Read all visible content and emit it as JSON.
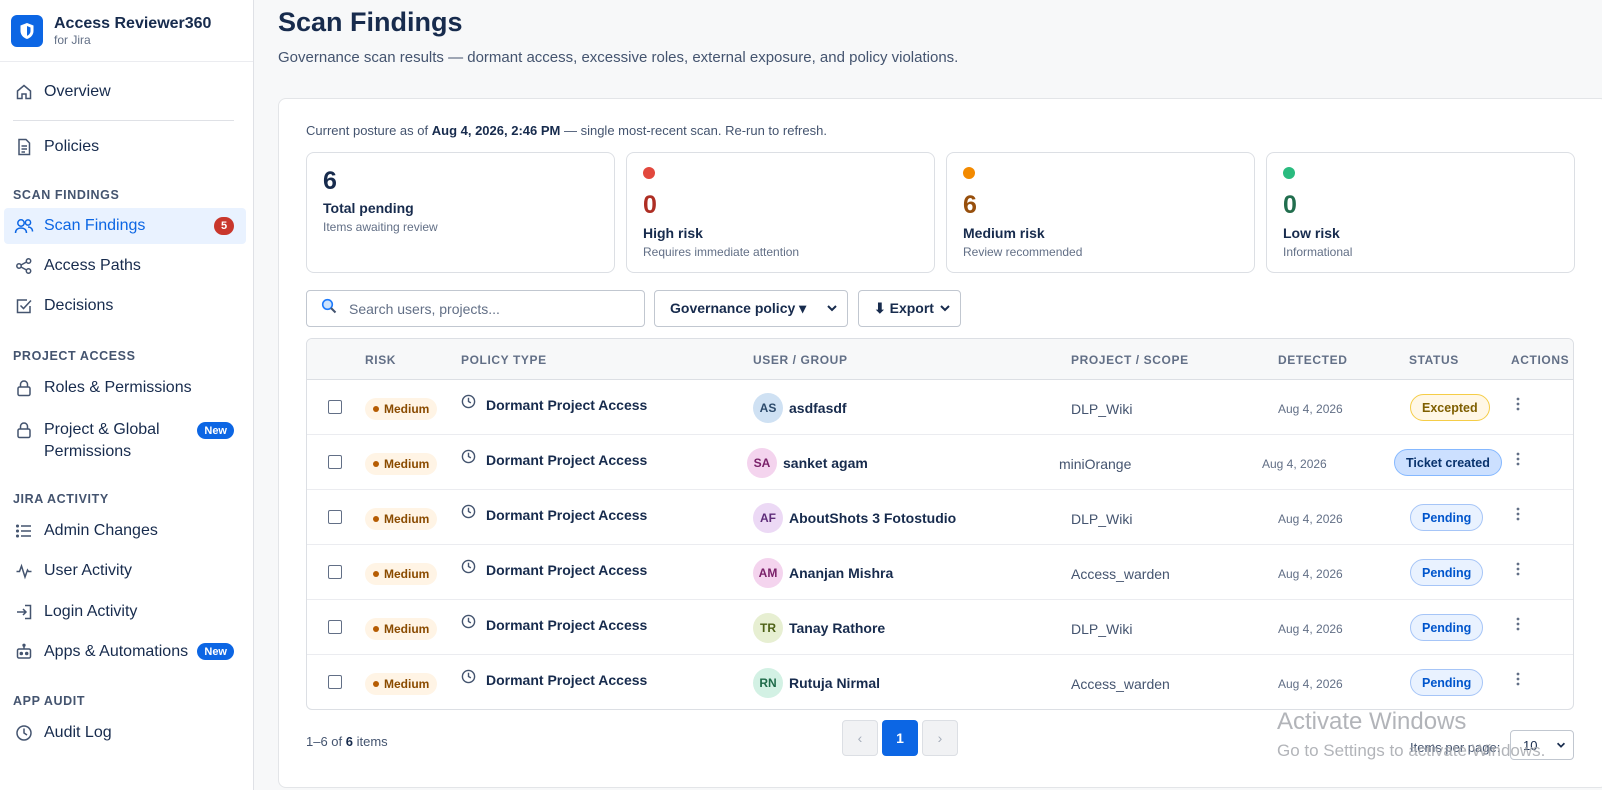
{
  "app": {
    "title": "Access Reviewer360",
    "subtitle": "for Jira"
  },
  "sidebar": {
    "top_items": [
      {
        "label": "Overview",
        "icon": "home-icon"
      },
      {
        "label": "Policies",
        "icon": "document-icon"
      }
    ],
    "sections": [
      {
        "title": "SCAN FINDINGS",
        "items": [
          {
            "label": "Scan Findings",
            "icon": "users-icon",
            "badge": "5",
            "active": true
          },
          {
            "label": "Access Paths",
            "icon": "share-icon"
          },
          {
            "label": "Decisions",
            "icon": "checkbox-icon"
          }
        ]
      },
      {
        "title": "PROJECT ACCESS",
        "items": [
          {
            "label": "Roles & Permissions",
            "icon": "lock-icon"
          },
          {
            "label": "Project & Global Permissions",
            "icon": "lock-icon",
            "badge": "New"
          }
        ]
      },
      {
        "title": "JIRA ACTIVITY",
        "items": [
          {
            "label": "Admin Changes",
            "icon": "list-icon"
          },
          {
            "label": "User Activity",
            "icon": "activity-icon"
          },
          {
            "label": "Login Activity",
            "icon": "login-icon"
          },
          {
            "label": "Apps & Automations",
            "icon": "robot-icon",
            "badge": "New"
          }
        ]
      },
      {
        "title": "APP AUDIT",
        "items": [
          {
            "label": "Audit Log",
            "icon": "clock-icon"
          }
        ]
      }
    ]
  },
  "header": {
    "title": "Scan Findings",
    "subtitle": "Governance scan results — dormant access, excessive roles, external exposure, and policy violations."
  },
  "posture": {
    "prefix": "Current posture as of ",
    "timestamp": "Aug 4, 2026, 2:46 PM",
    "suffix": " — single most-recent scan. Re-run to refresh."
  },
  "stats": [
    {
      "value": "6",
      "label": "Total pending",
      "desc": "Items awaiting review",
      "color": "#172b4d"
    },
    {
      "value": "0",
      "label": "High risk",
      "desc": "Requires immediate attention",
      "color": "#ae2e24",
      "dot": "#e2483d"
    },
    {
      "value": "6",
      "label": "Medium risk",
      "desc": "Review recommended",
      "color": "#974f0c",
      "dot": "#f38a00"
    },
    {
      "value": "0",
      "label": "Low risk",
      "desc": "Informational",
      "color": "#216e4e",
      "dot": "#2abb7f"
    }
  ],
  "toolbar": {
    "search_placeholder": "Search users, projects...",
    "policy_filter": "Governance policy ▾",
    "export_label": "⬇ Export"
  },
  "table": {
    "headers": [
      "RISK",
      "POLICY TYPE",
      "USER / GROUP",
      "PROJECT / SCOPE",
      "DETECTED",
      "STATUS",
      "ACTIONS"
    ],
    "rows": [
      {
        "risk": "Medium",
        "policy": "Dormant Project Access",
        "initials": "AS",
        "user": "asdfasdf",
        "scope": "DLP_Wiki",
        "detected": "Aug 4, 2026",
        "status": "Excepted",
        "status_kind": "excepted",
        "avatar_bg": "#cfe1f3",
        "avatar_fg": "#2c4a6b"
      },
      {
        "risk": "Medium",
        "policy": "Dormant Project Access",
        "initials": "SA",
        "user": "sanket agam",
        "scope": "miniOrange",
        "detected": "Aug 4, 2026",
        "status": "Ticket created",
        "status_kind": "ticket",
        "avatar_bg": "#f4d4ee",
        "avatar_fg": "#7a2169"
      },
      {
        "risk": "Medium",
        "policy": "Dormant Project Access",
        "initials": "AF",
        "user": "AboutShots 3 Fotostudio",
        "scope": "DLP_Wiki",
        "detected": "Aug 4, 2026",
        "status": "Pending",
        "status_kind": "pending",
        "avatar_bg": "#ecd9f5",
        "avatar_fg": "#5e2c7a"
      },
      {
        "risk": "Medium",
        "policy": "Dormant Project Access",
        "initials": "AM",
        "user": "Ananjan Mishra",
        "scope": "Access_warden",
        "detected": "Aug 4, 2026",
        "status": "Pending",
        "status_kind": "pending",
        "avatar_bg": "#f4d4ee",
        "avatar_fg": "#7a2169"
      },
      {
        "risk": "Medium",
        "policy": "Dormant Project Access",
        "initials": "TR",
        "user": "Tanay Rathore",
        "scope": "DLP_Wiki",
        "detected": "Aug 4, 2026",
        "status": "Pending",
        "status_kind": "pending",
        "avatar_bg": "#e7efd2",
        "avatar_fg": "#4d6116"
      },
      {
        "risk": "Medium",
        "policy": "Dormant Project Access",
        "initials": "RN",
        "user": "Rutuja Nirmal",
        "scope": "Access_warden",
        "detected": "Aug 4, 2026",
        "status": "Pending",
        "status_kind": "pending",
        "avatar_bg": "#d3f1e4",
        "avatar_fg": "#1f6b4a"
      }
    ]
  },
  "footer": {
    "range": "1–6 of ",
    "total": "6",
    "suffix": " items",
    "prev": "‹",
    "page": "1",
    "next": "›",
    "per_page_label": "Items per page:",
    "per_page_value": "10"
  },
  "watermark": {
    "line1": "Activate Windows",
    "line2": "Go to Settings to activate Windows."
  },
  "colors": {
    "accent": "#0c66e4",
    "danger": "#c9372c",
    "warning": "#f38a00",
    "success": "#2abb7f"
  }
}
